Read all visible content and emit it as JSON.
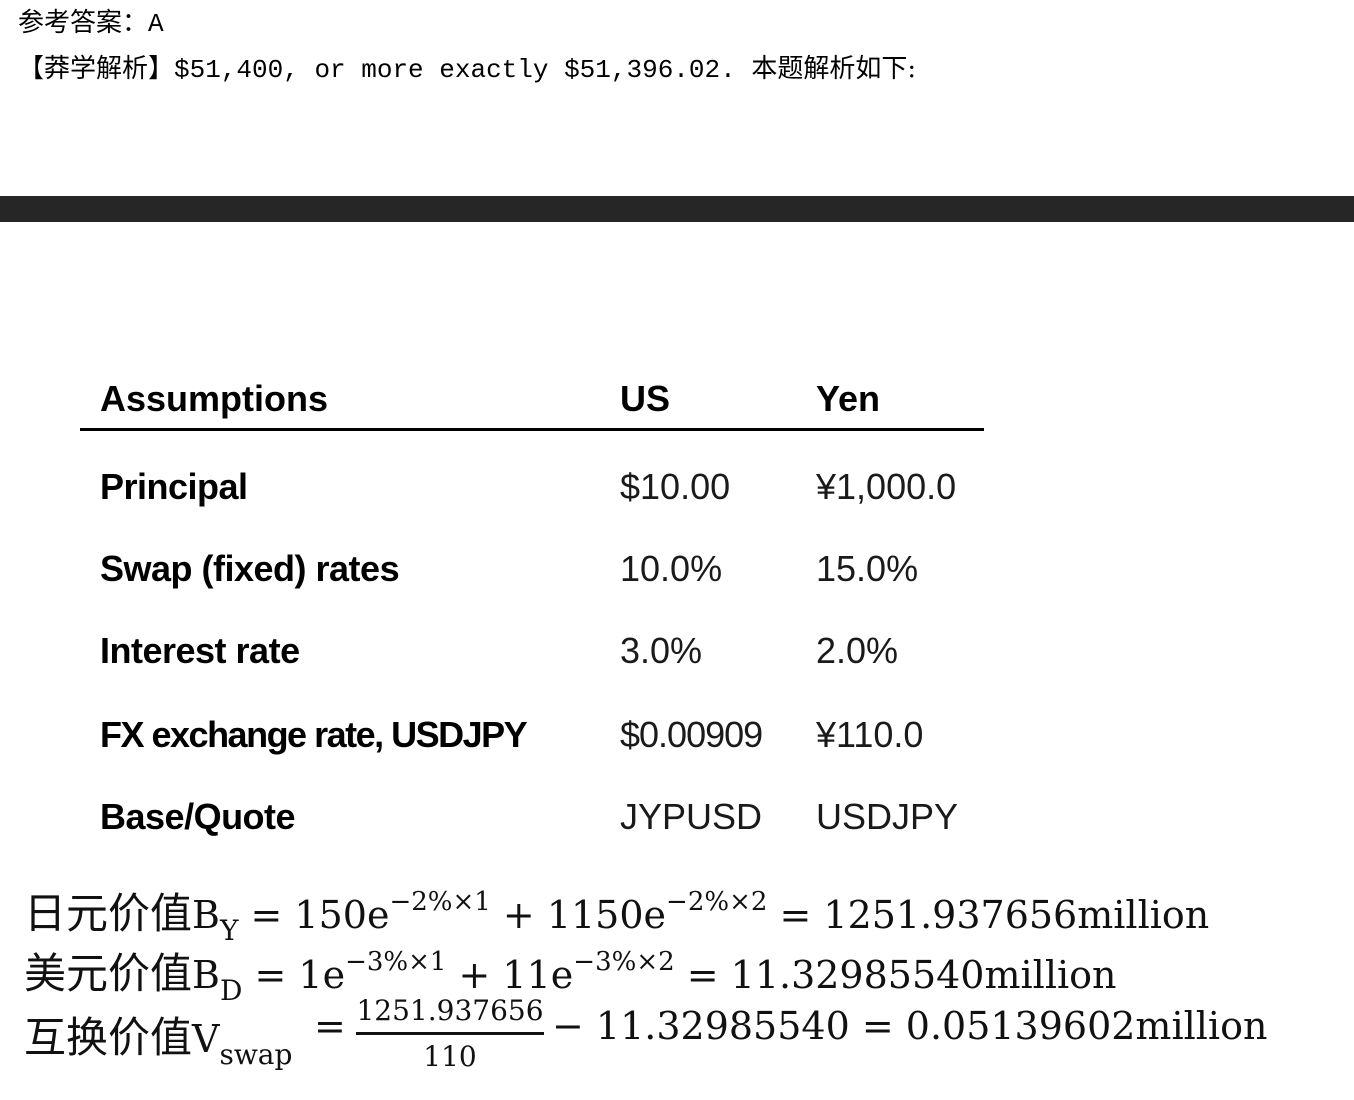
{
  "answer": {
    "label": "参考答案：",
    "value": "A"
  },
  "analysis": {
    "label": "【莽学解析】",
    "text": "$51,400, or more exactly $51,396.02. ",
    "tail": "本题解析如下:"
  },
  "table": {
    "headers": [
      "Assumptions",
      "US",
      "Yen"
    ],
    "rows": [
      {
        "label": "Principal",
        "us": "$10.00",
        "yen": "¥1,000.0"
      },
      {
        "label": "Swap (fixed) rates",
        "us": "10.0%",
        "yen": "15.0%"
      },
      {
        "label": "Interest rate",
        "us": "3.0%",
        "yen": "2.0%"
      },
      {
        "label": "FX exchange rate, USDJPY",
        "us": "$0.00909",
        "yen": "¥110.0"
      },
      {
        "label": "Base/Quote",
        "us": "JYPUSD",
        "yen": "USDJPY"
      }
    ]
  },
  "formulas": {
    "f1": {
      "cn": "日元价值",
      "var": "B",
      "sub": "Y",
      "p1": " = 150e",
      "s1": "−2%×1",
      "p2": " + 1150e",
      "s2": "−2%×2",
      "p3": " = 1251.937656million"
    },
    "f2": {
      "cn": "美元价值",
      "var": "B",
      "sub": "D",
      "p1": " = 1e",
      "s1": "−3%×1",
      "p2": " + 11e",
      "s2": "−3%×2",
      "p3": " = 11.32985540million"
    },
    "f3": {
      "cn": "互换价值",
      "var": "V",
      "sub": "swap",
      "eq": "=",
      "numerator": "1251.937656",
      "denominator": "110",
      "rest": "− 11.32985540 = 0.05139602million"
    }
  }
}
